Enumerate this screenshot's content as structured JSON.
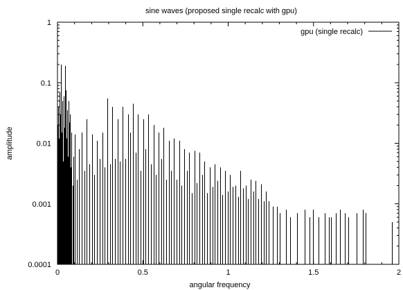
{
  "chart_data": {
    "type": "impulse",
    "title": "sine waves (proposed single recalc with gpu)",
    "xlabel": "angular frequency",
    "ylabel": "amplitude",
    "xlim": [
      0,
      2
    ],
    "ylim": [
      0.0001,
      1
    ],
    "yscale": "log",
    "grid": false,
    "legend_position": "top-right",
    "xticks": [
      {
        "value": 0,
        "label": "0"
      },
      {
        "value": 0.5,
        "label": "0.5"
      },
      {
        "value": 1,
        "label": "1"
      },
      {
        "value": 1.5,
        "label": "1.5"
      },
      {
        "value": 2,
        "label": "2"
      }
    ],
    "yticks": [
      {
        "value": 0.0001,
        "label": "0.0001"
      },
      {
        "value": 0.001,
        "label": "0.001"
      },
      {
        "value": 0.01,
        "label": "0.01"
      },
      {
        "value": 0.1,
        "label": "0.1"
      },
      {
        "value": 1,
        "label": "1"
      }
    ],
    "series": [
      {
        "name": "gpu (single recalc)",
        "color": "#000000",
        "x": [
          0.002,
          0.005,
          0.009,
          0.012,
          0.016,
          0.019,
          0.022,
          0.026,
          0.029,
          0.033,
          0.036,
          0.04,
          0.043,
          0.047,
          0.05,
          0.054,
          0.057,
          0.061,
          0.064,
          0.068,
          0.071,
          0.075,
          0.079,
          0.083,
          0.088,
          0.094,
          0.1,
          0.112,
          0.127,
          0.142,
          0.157,
          0.172,
          0.187,
          0.202,
          0.217,
          0.232,
          0.247,
          0.262,
          0.277,
          0.292,
          0.307,
          0.322,
          0.337,
          0.352,
          0.367,
          0.382,
          0.397,
          0.412,
          0.427,
          0.442,
          0.457,
          0.472,
          0.487,
          0.502,
          0.517,
          0.532,
          0.547,
          0.562,
          0.577,
          0.592,
          0.607,
          0.622,
          0.637,
          0.652,
          0.667,
          0.682,
          0.697,
          0.712,
          0.727,
          0.742,
          0.757,
          0.772,
          0.787,
          0.802,
          0.817,
          0.832,
          0.847,
          0.862,
          0.877,
          0.892,
          0.907,
          0.922,
          0.937,
          0.952,
          0.967,
          0.982,
          0.997,
          1.012,
          1.027,
          1.042,
          1.057,
          1.072,
          1.087,
          1.102,
          1.117,
          1.132,
          1.147,
          1.162,
          1.177,
          1.192,
          1.207,
          1.222,
          1.237,
          1.262,
          1.287,
          1.302,
          1.337,
          1.362,
          1.405,
          1.45,
          1.478,
          1.495,
          1.53,
          1.567,
          1.59,
          1.604,
          1.63,
          1.655,
          1.683,
          1.705,
          1.752,
          1.79,
          1.805,
          1.96
        ],
        "values": [
          0.02,
          0.04,
          0.012,
          0.07,
          0.03,
          0.008,
          0.2,
          0.015,
          0.05,
          0.005,
          0.06,
          0.018,
          0.19,
          0.03,
          0.075,
          0.012,
          0.035,
          0.006,
          0.05,
          0.022,
          0.007,
          0.03,
          0.004,
          0.015,
          0.002,
          0.006,
          0.014,
          0.0025,
          0.008,
          0.015,
          0.0035,
          0.025,
          0.0045,
          0.014,
          0.003,
          0.011,
          0.0055,
          0.015,
          0.004,
          0.055,
          0.0045,
          0.04,
          0.0055,
          0.025,
          0.005,
          0.04,
          0.0055,
          0.03,
          0.015,
          0.045,
          0.007,
          0.03,
          0.0035,
          0.025,
          0.008,
          0.03,
          0.0045,
          0.02,
          0.003,
          0.015,
          0.0055,
          0.018,
          0.0025,
          0.011,
          0.0035,
          0.012,
          0.0025,
          0.011,
          0.002,
          0.008,
          0.0035,
          0.007,
          0.0015,
          0.0075,
          0.0022,
          0.007,
          0.003,
          0.005,
          0.0015,
          0.004,
          0.0019,
          0.0045,
          0.0024,
          0.004,
          0.0014,
          0.0035,
          0.0016,
          0.003,
          0.0019,
          0.002,
          0.0013,
          0.0035,
          0.0018,
          0.002,
          0.0012,
          0.0025,
          0.0016,
          0.0024,
          0.0012,
          0.0021,
          0.0011,
          0.0016,
          0.0011,
          0.0009,
          0.0009,
          0.0007,
          0.0008,
          0.0006,
          0.0007,
          0.0008,
          0.0006,
          0.0008,
          0.0006,
          0.0007,
          0.0006,
          0.0006,
          0.0007,
          0.0008,
          0.0007,
          0.0006,
          0.0007,
          0.0008,
          0.0007,
          0.0005
        ]
      }
    ]
  }
}
